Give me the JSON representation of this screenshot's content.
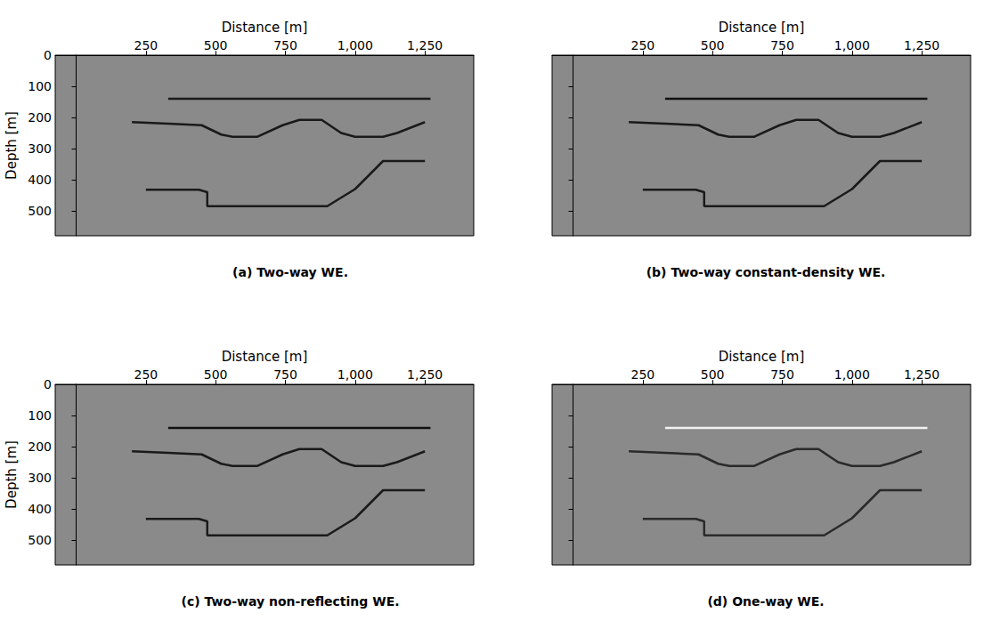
{
  "chart_data": [
    {
      "type": "line",
      "title": "(a) Two-way WE.",
      "x_label": "Distance [m]",
      "y_label": "Depth [m]",
      "xlim": [
        -75,
        1425
      ],
      "ylim": [
        0,
        580
      ],
      "xticks": [
        250,
        500,
        750,
        1000,
        1250
      ],
      "yticks": [
        0,
        100,
        200,
        300,
        400,
        500
      ],
      "series": [
        {
          "color": "#1a1a1a",
          "x": [
            330,
            1270
          ],
          "values": [
            140,
            140
          ]
        },
        {
          "color": "#1a1a1a",
          "x": [
            200,
            330,
            450,
            520,
            560,
            650,
            740,
            800,
            880,
            950,
            1000,
            1100,
            1150,
            1250
          ],
          "values": [
            215,
            220,
            225,
            255,
            262,
            262,
            225,
            208,
            208,
            250,
            262,
            262,
            250,
            215
          ]
        },
        {
          "color": "#1a1a1a",
          "x": [
            250,
            440,
            470,
            470,
            900,
            1000,
            1100,
            1250
          ],
          "values": [
            432,
            432,
            440,
            485,
            485,
            430,
            340,
            340
          ]
        }
      ]
    },
    {
      "type": "line",
      "title": "(b) Two-way constant-density WE.",
      "x_label": "Distance [m]",
      "tick_labels": "x",
      "xlim": [
        -75,
        1425
      ],
      "ylim": [
        0,
        580
      ],
      "xticks": [
        250,
        500,
        750,
        1000,
        1250
      ],
      "yticks": [
        0,
        100,
        200,
        300,
        400,
        500
      ],
      "series": [
        {
          "color": "#111111",
          "x": [
            330,
            1270
          ],
          "values": [
            140,
            140
          ]
        },
        {
          "color": "#1a1a1a",
          "x": [
            200,
            330,
            450,
            520,
            560,
            650,
            740,
            800,
            880,
            950,
            1000,
            1100,
            1150,
            1250
          ],
          "values": [
            215,
            220,
            225,
            255,
            262,
            262,
            225,
            208,
            208,
            250,
            262,
            262,
            250,
            215
          ]
        },
        {
          "color": "#1a1a1a",
          "x": [
            250,
            440,
            470,
            470,
            900,
            1000,
            1100,
            1250
          ],
          "values": [
            432,
            432,
            440,
            485,
            485,
            430,
            340,
            340
          ]
        }
      ]
    },
    {
      "type": "line",
      "title": "(c) Two-way non-reflecting WE.",
      "x_label": "Distance [m]",
      "y_label": "Depth [m]",
      "xlim": [
        -75,
        1425
      ],
      "ylim": [
        0,
        580
      ],
      "xticks": [
        250,
        500,
        750,
        1000,
        1250
      ],
      "yticks": [
        0,
        100,
        200,
        300,
        400,
        500
      ],
      "series": [
        {
          "color": "#111111",
          "x": [
            330,
            1270
          ],
          "values": [
            140,
            140
          ]
        },
        {
          "color": "#1a1a1a",
          "x": [
            200,
            330,
            450,
            520,
            560,
            650,
            740,
            800,
            880,
            950,
            1000,
            1100,
            1150,
            1250
          ],
          "values": [
            215,
            220,
            225,
            255,
            262,
            262,
            225,
            208,
            208,
            250,
            262,
            262,
            250,
            215
          ]
        },
        {
          "color": "#1a1a1a",
          "x": [
            250,
            440,
            470,
            470,
            900,
            1000,
            1100,
            1250
          ],
          "values": [
            432,
            432,
            440,
            485,
            485,
            430,
            340,
            340
          ]
        }
      ]
    },
    {
      "type": "line",
      "title": "(d) One-way WE.",
      "x_label": "Distance [m]",
      "tick_labels": "x",
      "xlim": [
        -75,
        1425
      ],
      "ylim": [
        0,
        580
      ],
      "xticks": [
        250,
        500,
        750,
        1000,
        1250
      ],
      "yticks": [
        0,
        100,
        200,
        300,
        400,
        500
      ],
      "series": [
        {
          "color": "#f2f2f2",
          "x": [
            330,
            1270
          ],
          "values": [
            140,
            140
          ]
        },
        {
          "color": "#2a2a2a",
          "x": [
            200,
            330,
            450,
            520,
            560,
            650,
            740,
            800,
            880,
            950,
            1000,
            1100,
            1150,
            1250
          ],
          "values": [
            215,
            220,
            225,
            255,
            262,
            262,
            225,
            208,
            208,
            250,
            262,
            262,
            250,
            215
          ]
        },
        {
          "color": "#2a2a2a",
          "x": [
            250,
            440,
            470,
            470,
            900,
            1000,
            1100,
            1250
          ],
          "values": [
            432,
            432,
            440,
            485,
            485,
            430,
            340,
            340
          ]
        }
      ]
    }
  ]
}
